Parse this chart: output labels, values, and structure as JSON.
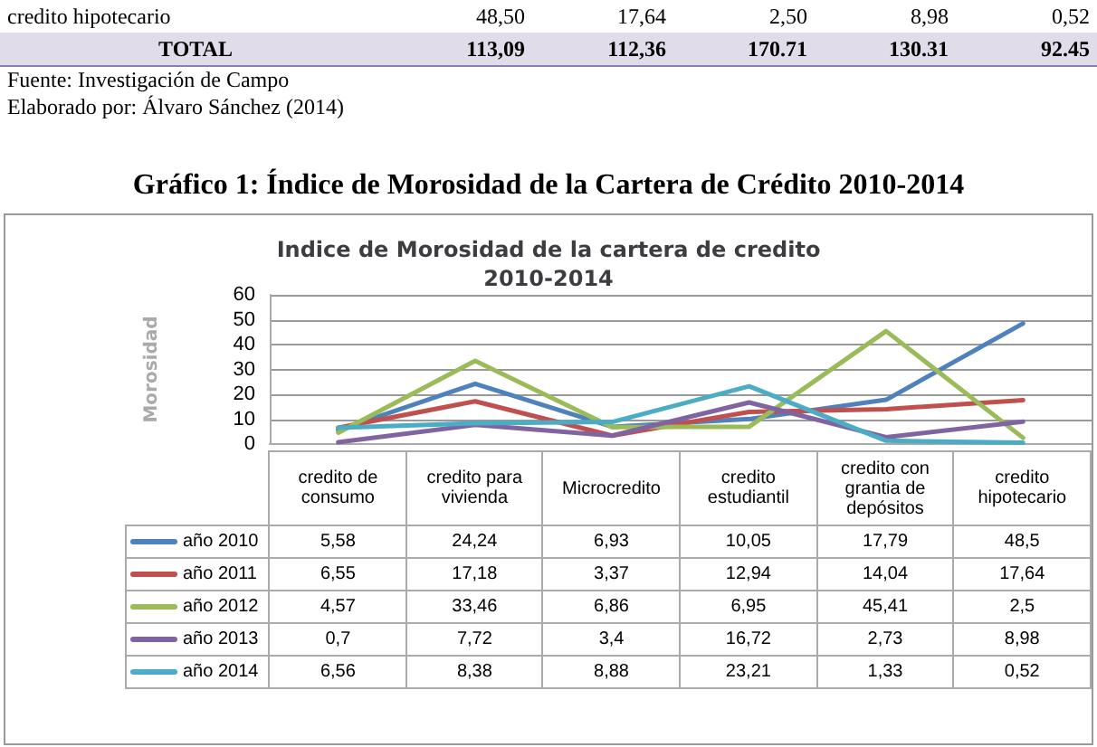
{
  "chart_data": {
    "type": "line",
    "title": "Indice de Morosidad de la cartera de credito\n2010-2014",
    "ylabel": "Morosidad",
    "annotations": [
      "credito hipotecario",
      "48,50",
      "17,64",
      "2,50",
      "8,98",
      "0,52",
      "TOTAL",
      "113,09",
      "112,36",
      "170.71",
      "130.31",
      "92.45",
      "Fuente: Investigación de Campo",
      "Elaborado por: Álvaro Sánchez (2014)",
      "Gráfico 1: Índice de Morosidad de la Cartera de Crédito 2010-2014"
    ],
    "categories": [
      "credito de consumo",
      "credito para vivienda",
      "Microcredito",
      "credito estudiantil",
      "credito con grantia de depósitos",
      "credito hipotecario"
    ],
    "series": [
      {
        "name": "año 2010",
        "color": "#4f81bd",
        "values": [
          5.58,
          24.24,
          6.93,
          10.05,
          17.79,
          48.5
        ],
        "value_labels": [
          "5,58",
          "24,24",
          "6,93",
          "10,05",
          "17,79",
          "48,5"
        ]
      },
      {
        "name": "año 2011",
        "color": "#c0504d",
        "values": [
          6.55,
          17.18,
          3.37,
          12.94,
          14.04,
          17.64
        ],
        "value_labels": [
          "6,55",
          "17,18",
          "3,37",
          "12,94",
          "14,04",
          "17,64"
        ]
      },
      {
        "name": "año 2012",
        "color": "#9bbb59",
        "values": [
          4.57,
          33.46,
          6.86,
          6.95,
          45.41,
          2.5
        ],
        "value_labels": [
          "4,57",
          "33,46",
          "6,86",
          "6,95",
          "45,41",
          "2,5"
        ]
      },
      {
        "name": "año 2013",
        "color": "#8064a2",
        "values": [
          0.7,
          7.72,
          3.4,
          16.72,
          2.73,
          8.98
        ],
        "value_labels": [
          "0,7",
          "7,72",
          "3,4",
          "16,72",
          "2,73",
          "8,98"
        ]
      },
      {
        "name": "año 2014",
        "color": "#4bacc6",
        "values": [
          6.56,
          8.38,
          8.88,
          23.21,
          1.33,
          0.52
        ],
        "value_labels": [
          "6,56",
          "8,38",
          "8,88",
          "23,21",
          "1,33",
          "0,52"
        ]
      }
    ],
    "ylim": [
      0,
      60
    ],
    "yticks": [
      0,
      10,
      20,
      30,
      40,
      50,
      60
    ],
    "grid": "y",
    "legend": "bottom left",
    "marker": "none",
    "line_style": "solid"
  }
}
